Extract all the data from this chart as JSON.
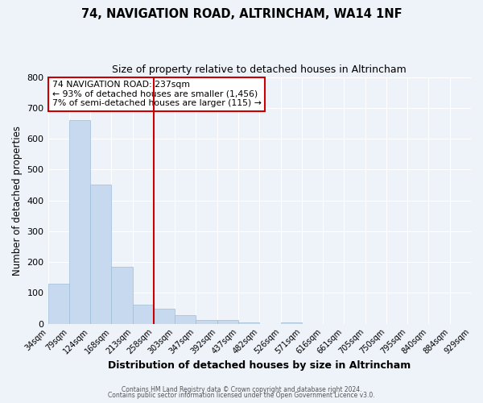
{
  "title": "74, NAVIGATION ROAD, ALTRINCHAM, WA14 1NF",
  "subtitle": "Size of property relative to detached houses in Altrincham",
  "xlabel": "Distribution of detached houses by size in Altrincham",
  "ylabel": "Number of detached properties",
  "bar_values": [
    130,
    660,
    450,
    185,
    62,
    48,
    28,
    13,
    13,
    5,
    0,
    5,
    0,
    0,
    0,
    0,
    0,
    0,
    0,
    0
  ],
  "bin_labels": [
    "34sqm",
    "79sqm",
    "124sqm",
    "168sqm",
    "213sqm",
    "258sqm",
    "303sqm",
    "347sqm",
    "392sqm",
    "437sqm",
    "482sqm",
    "526sqm",
    "571sqm",
    "616sqm",
    "661sqm",
    "705sqm",
    "750sqm",
    "795sqm",
    "840sqm",
    "884sqm",
    "929sqm"
  ],
  "bar_color": "#c6d9ee",
  "bar_edge_color": "#9dbdd8",
  "vline_color": "#cc0000",
  "ylim": [
    0,
    800
  ],
  "yticks": [
    0,
    100,
    200,
    300,
    400,
    500,
    600,
    700,
    800
  ],
  "annotation_line1": "74 NAVIGATION ROAD: 237sqm",
  "annotation_line2": "← 93% of detached houses are smaller (1,456)",
  "annotation_line3": "7% of semi-detached houses are larger (115) →",
  "annotation_box_color": "white",
  "annotation_box_edge_color": "#cc0000",
  "footer1": "Contains HM Land Registry data © Crown copyright and database right 2024.",
  "footer2": "Contains public sector information licensed under the Open Government Licence v3.0.",
  "background_color": "#eef2f9",
  "grid_color": "white"
}
